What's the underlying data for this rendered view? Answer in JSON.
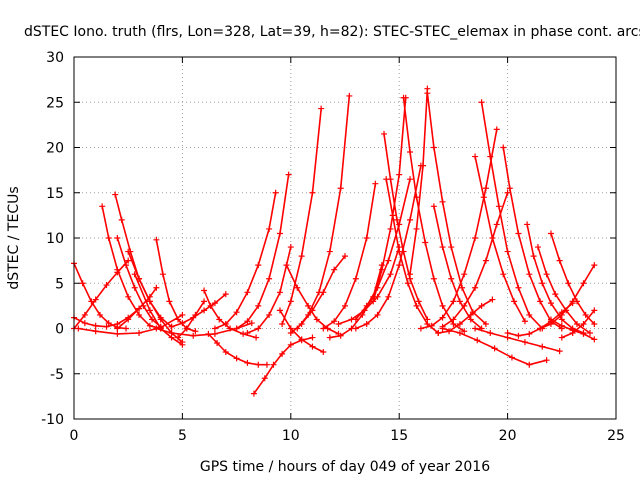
{
  "chart_data": {
    "type": "scatter",
    "title": "dSTEC Iono. truth (flrs, Lon=328, Lat=39, h=82): STEC-STEC_elemax in phase cont. arcs",
    "xlabel": "GPS time / hours of day 049 of year 2016",
    "ylabel": "dSTEC  / TECUs",
    "xlim": [
      0,
      25
    ],
    "ylim": [
      -10,
      30
    ],
    "xticks": [
      0,
      5,
      10,
      15,
      20,
      25
    ],
    "yticks": [
      -10,
      -5,
      0,
      5,
      10,
      15,
      20,
      25,
      30
    ],
    "grid": true,
    "marker": "+",
    "color": "#ff0000",
    "arcs": [
      {
        "x": [
          0.0,
          0.4,
          0.8,
          1.2,
          1.6,
          2.0,
          2.4
        ],
        "y": [
          7.2,
          5.0,
          3.0,
          1.5,
          0.6,
          0.1,
          0.0
        ]
      },
      {
        "x": [
          0.0,
          0.5,
          1.0,
          1.5,
          2.0,
          2.5
        ],
        "y": [
          0.0,
          1.5,
          3.2,
          4.8,
          6.2,
          7.5
        ]
      },
      {
        "x": [
          0.0,
          0.5,
          1.0,
          1.5,
          2.0,
          2.5,
          3.0
        ],
        "y": [
          1.2,
          0.6,
          0.3,
          0.2,
          0.5,
          1.2,
          2.2
        ]
      },
      {
        "x": [
          0.2,
          1.0,
          2.0,
          3.0,
          4.0,
          5.0
        ],
        "y": [
          0.0,
          -0.3,
          -0.6,
          -0.5,
          0.1,
          1.5
        ]
      },
      {
        "x": [
          1.3,
          1.6,
          2.0,
          2.5,
          3.0,
          3.5,
          4.0
        ],
        "y": [
          13.5,
          10.0,
          6.5,
          3.5,
          1.5,
          0.3,
          0.0
        ]
      },
      {
        "x": [
          1.9,
          2.2,
          2.6,
          3.0,
          3.5,
          4.0,
          4.5
        ],
        "y": [
          14.8,
          12.0,
          8.5,
          5.5,
          3.0,
          1.2,
          0.2
        ]
      },
      {
        "x": [
          2.0,
          2.4,
          2.8,
          3.2,
          3.6,
          4.0
        ],
        "y": [
          10.0,
          7.0,
          4.5,
          2.5,
          1.0,
          0.2
        ]
      },
      {
        "x": [
          2.5,
          3.0,
          3.5,
          4.0,
          4.5,
          5.0
        ],
        "y": [
          8.5,
          5.5,
          3.0,
          1.0,
          -0.5,
          -1.5
        ]
      },
      {
        "x": [
          2.8,
          3.5,
          4.0,
          4.5,
          5.0
        ],
        "y": [
          6.0,
          2.0,
          0.0,
          -1.0,
          -1.8
        ]
      },
      {
        "x": [
          3.8,
          4.1,
          4.4,
          4.8,
          5.2,
          5.6
        ],
        "y": [
          9.8,
          6.0,
          3.0,
          1.0,
          0.0,
          -0.3
        ]
      },
      {
        "x": [
          2.0,
          2.5,
          3.0,
          3.5,
          3.8
        ],
        "y": [
          0.0,
          1.0,
          2.2,
          3.5,
          4.5
        ]
      },
      {
        "x": [
          3.8,
          4.5,
          5.5,
          6.5,
          7.5,
          8.2
        ],
        "y": [
          0.0,
          -0.5,
          -0.8,
          -0.6,
          0.0,
          0.6
        ]
      },
      {
        "x": [
          4.5,
          5.0,
          5.5,
          6.0,
          6.5,
          7.0
        ],
        "y": [
          0.2,
          0.6,
          1.2,
          2.0,
          2.8,
          3.8
        ]
      },
      {
        "x": [
          4.8,
          5.2,
          5.6,
          6.0
        ],
        "y": [
          -1.0,
          0.0,
          1.5,
          3.0
        ]
      },
      {
        "x": [
          6.0,
          6.3,
          6.7,
          7.2,
          7.8,
          8.4
        ],
        "y": [
          4.2,
          2.5,
          1.0,
          0.0,
          -0.6,
          -1.0
        ]
      },
      {
        "x": [
          6.2,
          6.6,
          7.0,
          7.5,
          8.0,
          8.5,
          8.9
        ],
        "y": [
          -0.6,
          -1.6,
          -2.6,
          -3.3,
          -3.8,
          -4.0,
          -4.0
        ]
      },
      {
        "x": [
          8.3,
          8.8,
          9.2,
          9.6,
          10.0,
          10.5,
          11.0
        ],
        "y": [
          -7.2,
          -5.5,
          -4.0,
          -2.8,
          -1.8,
          -1.3,
          -1.0
        ]
      },
      {
        "x": [
          6.5,
          7.0,
          7.5,
          8.0,
          8.5,
          9.0,
          9.3
        ],
        "y": [
          0.0,
          0.5,
          1.8,
          4.0,
          7.0,
          11.0,
          15.0
        ]
      },
      {
        "x": [
          7.5,
          8.0,
          8.5,
          9.0,
          9.5,
          9.9
        ],
        "y": [
          0.0,
          0.8,
          2.5,
          5.5,
          10.5,
          17.0
        ]
      },
      {
        "x": [
          8.0,
          8.5,
          9.0,
          9.5,
          10.0
        ],
        "y": [
          -0.5,
          0.0,
          1.5,
          4.0,
          9.0
        ]
      },
      {
        "x": [
          9.8,
          10.3,
          10.8,
          11.2,
          11.7,
          12.2
        ],
        "y": [
          7.0,
          4.5,
          2.5,
          1.0,
          0.0,
          -0.6
        ]
      },
      {
        "x": [
          9.5,
          10.0,
          10.5,
          11.0,
          11.5
        ],
        "y": [
          2.0,
          0.0,
          -1.2,
          -2.0,
          -2.6
        ]
      },
      {
        "x": [
          10.0,
          10.5,
          11.0,
          11.5,
          12.0,
          12.5
        ],
        "y": [
          -0.5,
          0.5,
          2.0,
          4.0,
          6.5,
          8.0
        ]
      },
      {
        "x": [
          9.6,
          10.0,
          10.5,
          11.0,
          11.4
        ],
        "y": [
          0.5,
          3.0,
          8.0,
          15.0,
          24.3
        ]
      },
      {
        "x": [
          10.3,
          10.8,
          11.3,
          11.8,
          12.3,
          12.7
        ],
        "y": [
          0.0,
          1.5,
          4.0,
          8.5,
          15.5,
          25.7
        ]
      },
      {
        "x": [
          11.5,
          12.0,
          12.5,
          13.0,
          13.5,
          13.9
        ],
        "y": [
          0.0,
          0.8,
          2.5,
          5.5,
          10.0,
          16.0
        ]
      },
      {
        "x": [
          11.8,
          12.3,
          12.8,
          13.3,
          13.8,
          14.2
        ],
        "y": [
          -1.0,
          -0.8,
          0.0,
          1.5,
          3.5,
          7.0
        ]
      },
      {
        "x": [
          12.2,
          12.8,
          13.4,
          14.0,
          14.6,
          15.0
        ],
        "y": [
          0.5,
          1.0,
          2.0,
          3.5,
          6.0,
          9.0
        ]
      },
      {
        "x": [
          13.0,
          13.5,
          14.0,
          14.5,
          15.0,
          15.5,
          16.0
        ],
        "y": [
          0.0,
          0.5,
          1.5,
          3.5,
          7.0,
          12.0,
          18.0
        ]
      },
      {
        "x": [
          14.4,
          14.7,
          15.0,
          15.4,
          15.8,
          16.3,
          16.8
        ],
        "y": [
          16.5,
          12.5,
          8.5,
          5.0,
          2.5,
          0.5,
          -0.5
        ]
      },
      {
        "x": [
          13.0,
          13.5,
          14.0,
          14.5,
          15.0,
          15.5
        ],
        "y": [
          1.0,
          2.5,
          4.5,
          7.5,
          11.5,
          16.5
        ]
      },
      {
        "x": [
          13.8,
          14.2,
          14.6,
          15.0,
          15.3
        ],
        "y": [
          3.0,
          6.5,
          11.0,
          17.0,
          25.5
        ]
      },
      {
        "x": [
          14.3,
          14.6,
          14.9,
          15.2,
          15.5,
          15.9,
          16.3
        ],
        "y": [
          21.5,
          16.5,
          12.0,
          8.5,
          5.5,
          3.0,
          1.0
        ]
      },
      {
        "x": [
          15.2,
          15.5,
          15.8,
          16.2,
          16.6,
          17.0,
          17.5,
          18.0
        ],
        "y": [
          25.5,
          19.5,
          14.5,
          9.5,
          5.5,
          2.5,
          0.5,
          -0.3
        ]
      },
      {
        "x": [
          15.5,
          15.8,
          16.1,
          16.3
        ],
        "y": [
          6.0,
          11.0,
          18.0,
          26.5
        ]
      },
      {
        "x": [
          16.3,
          16.6,
          17.0,
          17.4,
          17.9,
          18.4,
          19.0
        ],
        "y": [
          26.0,
          20.0,
          14.0,
          9.0,
          4.5,
          1.8,
          0.5
        ]
      },
      {
        "x": [
          16.6,
          17.0,
          17.4,
          17.8,
          18.3,
          18.8
        ],
        "y": [
          13.5,
          9.0,
          5.5,
          3.0,
          1.0,
          0.0
        ]
      },
      {
        "x": [
          16.0,
          16.5,
          17.0,
          17.5,
          18.0,
          18.5,
          19.0,
          19.5
        ],
        "y": [
          0.0,
          0.3,
          1.2,
          3.0,
          6.0,
          10.0,
          15.5,
          22.0
        ]
      },
      {
        "x": [
          17.0,
          17.5,
          18.0,
          18.5,
          19.0,
          19.5,
          20.0
        ],
        "y": [
          0.2,
          1.0,
          2.5,
          4.5,
          7.5,
          11.5,
          15.0
        ]
      },
      {
        "x": [
          16.8,
          17.3,
          17.8,
          18.3,
          18.8,
          19.3
        ],
        "y": [
          -0.5,
          -0.3,
          0.5,
          1.5,
          2.5,
          3.2
        ]
      },
      {
        "x": [
          18.8,
          19.2,
          19.6,
          20.0,
          20.5,
          21.0,
          21.6
        ],
        "y": [
          25.0,
          19.0,
          13.5,
          8.5,
          4.5,
          1.5,
          0.0
        ]
      },
      {
        "x": [
          18.5,
          18.9,
          19.3,
          19.8,
          20.3,
          20.8
        ],
        "y": [
          19.0,
          14.5,
          10.0,
          6.0,
          3.0,
          0.8
        ]
      },
      {
        "x": [
          19.8,
          20.1,
          20.5,
          21.0,
          21.5,
          22.0,
          22.5
        ],
        "y": [
          20.0,
          15.5,
          10.5,
          6.0,
          3.0,
          0.8,
          0.0
        ]
      },
      {
        "x": [
          17.0,
          17.8,
          18.6,
          19.4,
          20.2,
          21.0,
          21.8
        ],
        "y": [
          0.0,
          -0.5,
          -1.3,
          -2.2,
          -3.2,
          -4.0,
          -3.5
        ]
      },
      {
        "x": [
          18.5,
          19.2,
          20.0,
          20.8,
          21.6,
          22.4
        ],
        "y": [
          0.0,
          -0.5,
          -1.0,
          -1.5,
          -2.0,
          -2.5
        ]
      },
      {
        "x": [
          20.9,
          21.2,
          21.6,
          22.0,
          22.5,
          23.0,
          23.5
        ],
        "y": [
          11.5,
          8.0,
          5.0,
          2.8,
          1.0,
          0.0,
          -0.5
        ]
      },
      {
        "x": [
          21.4,
          21.8,
          22.2,
          22.7,
          23.2,
          23.8
        ],
        "y": [
          9.0,
          6.0,
          3.8,
          2.0,
          0.5,
          -0.5
        ]
      },
      {
        "x": [
          22.0,
          22.4,
          22.8,
          23.2,
          23.6,
          24.0
        ],
        "y": [
          10.5,
          7.5,
          5.0,
          3.0,
          1.5,
          0.5
        ]
      },
      {
        "x": [
          20.0,
          20.5,
          21.0,
          21.5,
          22.0,
          22.5,
          23.0
        ],
        "y": [
          -0.5,
          -0.8,
          -0.6,
          0.0,
          0.8,
          1.8,
          2.8
        ]
      },
      {
        "x": [
          21.5,
          22.0,
          22.5,
          23.0,
          23.5,
          24.0
        ],
        "y": [
          0.0,
          0.5,
          1.5,
          3.0,
          5.0,
          7.0
        ]
      },
      {
        "x": [
          22.5,
          23.0,
          23.5,
          24.0
        ],
        "y": [
          -1.0,
          -0.5,
          0.5,
          2.0
        ]
      },
      {
        "x": [
          22.0,
          22.5,
          23.0,
          23.5,
          24.0
        ],
        "y": [
          1.0,
          0.3,
          -0.2,
          -0.6,
          -1.2
        ]
      }
    ]
  }
}
